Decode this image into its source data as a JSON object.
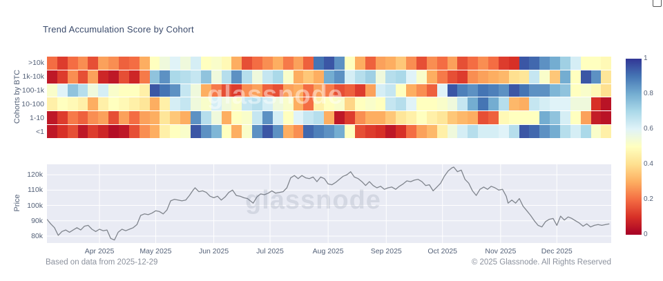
{
  "title": "Trend Accumulation Score by Cohort",
  "watermark": "glassnode",
  "footer": {
    "left": "Based on data from 2025-12-29",
    "right": "© 2025 Glassnode. All Rights Reserved"
  },
  "colors": {
    "plot_bg": "#e9ebf4",
    "grid": "#ffffff",
    "price_line": "#7f848c",
    "title_text": "#3a4a6b",
    "axis_text": "#546178",
    "footer_text": "#8b919d",
    "watermark_price": "rgba(100,110,135,0.16)",
    "watermark_heatmap": "rgba(255,255,255,0.45)"
  },
  "chart_data": [
    {
      "type": "heatmap",
      "title": "Trend Accumulation Score by Cohort",
      "ylabel": "Cohorts by BTC",
      "x_range": [
        "2025-03-04",
        "2025-12-30"
      ],
      "zmin": 0,
      "zmax": 1,
      "colorscale": "RdYlBu",
      "colorscale_stops": [
        [
          0.0,
          "#a50026"
        ],
        [
          0.1,
          "#d73027"
        ],
        [
          0.2,
          "#f46d43"
        ],
        [
          0.3,
          "#fdae61"
        ],
        [
          0.4,
          "#fee090"
        ],
        [
          0.5,
          "#ffffbf"
        ],
        [
          0.6,
          "#e0f3f8"
        ],
        [
          0.7,
          "#abd9e9"
        ],
        [
          0.8,
          "#74add1"
        ],
        [
          0.9,
          "#4575b4"
        ],
        [
          1.0,
          "#313695"
        ]
      ],
      "colorbar_ticks": [
        0,
        0.2,
        0.4,
        0.6,
        0.8,
        1
      ],
      "rows": [
        ">10k",
        "1k-10k",
        "100-1k",
        "10-100",
        "1-10",
        "<1"
      ],
      "series": [
        {
          "name": ">10k",
          "values": [
            0.2,
            0.12,
            0.2,
            0.25,
            0.15,
            0.28,
            0.25,
            0.18,
            0.2,
            0.3,
            0.5,
            0.55,
            0.6,
            0.55,
            0.62,
            0.5,
            0.52,
            0.48,
            0.3,
            0.15,
            0.2,
            0.25,
            0.3,
            0.22,
            0.28,
            0.18,
            0.9,
            0.95,
            0.85,
            0.5,
            0.3,
            0.18,
            0.28,
            0.3,
            0.35,
            0.25,
            0.15,
            0.25,
            0.2,
            0.28,
            0.15,
            0.2,
            0.25,
            0.2,
            0.12,
            0.1,
            0.95,
            0.92,
            0.85,
            0.8,
            0.72,
            0.62,
            0.5,
            0.5,
            0.48
          ]
        },
        {
          "name": "1k-10k",
          "values": [
            0.05,
            0.12,
            0.25,
            0.15,
            0.28,
            0.08,
            0.05,
            0.15,
            0.08,
            0.22,
            0.75,
            0.85,
            0.7,
            0.68,
            0.65,
            0.75,
            0.55,
            0.68,
            0.85,
            0.68,
            0.55,
            0.65,
            0.7,
            0.52,
            0.3,
            0.35,
            0.3,
            0.8,
            0.85,
            0.62,
            0.68,
            0.72,
            0.55,
            0.68,
            0.7,
            0.6,
            0.52,
            0.3,
            0.22,
            0.15,
            0.12,
            0.25,
            0.28,
            0.3,
            0.32,
            0.4,
            0.42,
            0.65,
            0.52,
            0.35,
            0.8,
            0.5,
            0.95,
            0.85,
            0.42
          ]
        },
        {
          "name": "100-1k",
          "values": [
            0.52,
            0.6,
            0.75,
            0.68,
            0.55,
            0.62,
            0.52,
            0.5,
            0.5,
            0.45,
            0.95,
            0.9,
            0.85,
            0.65,
            0.55,
            0.3,
            0.22,
            0.15,
            0.12,
            0.25,
            0.28,
            0.18,
            0.15,
            0.28,
            0.3,
            0.2,
            0.28,
            0.22,
            0.15,
            0.18,
            0.12,
            0.28,
            0.62,
            0.65,
            0.5,
            0.3,
            0.25,
            0.18,
            0.6,
            0.95,
            0.88,
            0.85,
            0.9,
            0.88,
            0.85,
            0.95,
            0.9,
            0.85,
            0.85,
            0.78,
            0.75,
            0.5,
            0.52,
            0.48,
            0.4
          ]
        },
        {
          "name": "10-100",
          "values": [
            0.45,
            0.5,
            0.48,
            0.45,
            0.3,
            0.45,
            0.5,
            0.48,
            0.45,
            0.42,
            0.3,
            0.45,
            0.62,
            0.65,
            0.55,
            0.52,
            0.62,
            0.55,
            0.52,
            0.65,
            0.68,
            0.62,
            0.55,
            0.52,
            0.3,
            0.2,
            0.45,
            0.5,
            0.52,
            0.38,
            0.5,
            0.52,
            0.5,
            0.65,
            0.68,
            0.6,
            0.5,
            0.5,
            0.52,
            0.55,
            0.65,
            0.8,
            0.9,
            0.8,
            0.68,
            0.32,
            0.3,
            0.65,
            0.62,
            0.6,
            0.6,
            0.55,
            0.55,
            0.1,
            0.04
          ]
        },
        {
          "name": "1-10",
          "values": [
            0.05,
            0.12,
            0.22,
            0.18,
            0.25,
            0.28,
            0.15,
            0.28,
            0.2,
            0.28,
            0.3,
            0.42,
            0.35,
            0.3,
            0.85,
            0.68,
            0.55,
            0.3,
            0.5,
            0.52,
            0.65,
            0.85,
            0.62,
            0.5,
            0.6,
            0.65,
            0.68,
            0.3,
            0.05,
            0.12,
            0.25,
            0.3,
            0.3,
            0.35,
            0.42,
            0.45,
            0.5,
            0.45,
            0.42,
            0.35,
            0.32,
            0.3,
            0.15,
            0.18,
            0.48,
            0.5,
            0.5,
            0.5,
            0.8,
            0.75,
            0.62,
            0.5,
            0.28,
            0.06,
            0.04
          ]
        },
        {
          "name": "<1",
          "values": [
            0.05,
            0.1,
            0.15,
            0.05,
            0.12,
            0.08,
            0.03,
            0.05,
            0.15,
            0.25,
            0.3,
            0.45,
            0.5,
            0.52,
            0.95,
            0.85,
            0.78,
            0.5,
            0.3,
            0.52,
            0.85,
            0.95,
            0.85,
            0.3,
            0.25,
            0.92,
            0.88,
            0.85,
            0.8,
            0.5,
            0.15,
            0.12,
            0.1,
            0.05,
            0.1,
            0.2,
            0.28,
            0.32,
            0.45,
            0.55,
            0.62,
            0.68,
            0.62,
            0.62,
            0.6,
            0.68,
            0.95,
            0.92,
            0.85,
            0.8,
            0.68,
            0.62,
            0.7,
            0.52,
            0.45
          ]
        }
      ]
    },
    {
      "type": "line",
      "ylabel": "Price",
      "ylim": [
        75.5,
        126.8
      ],
      "yticks": [
        {
          "value": 80,
          "label": "80k"
        },
        {
          "value": 90,
          "label": "90k"
        },
        {
          "value": 100,
          "label": "100k"
        },
        {
          "value": 110,
          "label": "110k"
        },
        {
          "value": 120,
          "label": "120k"
        }
      ],
      "xticks": [
        {
          "date": "2025-04-01",
          "label": "Apr 2025"
        },
        {
          "date": "2025-05-01",
          "label": "May 2025"
        },
        {
          "date": "2025-06-01",
          "label": "Jun 2025"
        },
        {
          "date": "2025-07-01",
          "label": "Jul 2025"
        },
        {
          "date": "2025-08-01",
          "label": "Aug 2025"
        },
        {
          "date": "2025-09-01",
          "label": "Sep 2025"
        },
        {
          "date": "2025-10-01",
          "label": "Oct 2025"
        },
        {
          "date": "2025-11-01",
          "label": "Nov 2025"
        },
        {
          "date": "2025-12-01",
          "label": "Dec 2025"
        }
      ],
      "points": [
        [
          "2025-03-04",
          91.0
        ],
        [
          "2025-03-06",
          88.0
        ],
        [
          "2025-03-08",
          85.5
        ],
        [
          "2025-03-10",
          80.5
        ],
        [
          "2025-03-12",
          83.0
        ],
        [
          "2025-03-14",
          84.0
        ],
        [
          "2025-03-16",
          82.5
        ],
        [
          "2025-03-18",
          84.0
        ],
        [
          "2025-03-20",
          85.5
        ],
        [
          "2025-03-22",
          84.0
        ],
        [
          "2025-03-24",
          86.5
        ],
        [
          "2025-03-26",
          87.0
        ],
        [
          "2025-03-28",
          84.5
        ],
        [
          "2025-03-30",
          83.0
        ],
        [
          "2025-04-01",
          84.5
        ],
        [
          "2025-04-03",
          83.5
        ],
        [
          "2025-04-05",
          84.0
        ],
        [
          "2025-04-07",
          78.5
        ],
        [
          "2025-04-09",
          77.5
        ],
        [
          "2025-04-11",
          82.5
        ],
        [
          "2025-04-13",
          84.5
        ],
        [
          "2025-04-15",
          83.5
        ],
        [
          "2025-04-17",
          84.5
        ],
        [
          "2025-04-19",
          85.5
        ],
        [
          "2025-04-21",
          87.5
        ],
        [
          "2025-04-23",
          93.5
        ],
        [
          "2025-04-25",
          94.5
        ],
        [
          "2025-04-27",
          94.0
        ],
        [
          "2025-04-29",
          95.0
        ],
        [
          "2025-05-01",
          96.5
        ],
        [
          "2025-05-03",
          96.0
        ],
        [
          "2025-05-05",
          94.5
        ],
        [
          "2025-05-07",
          97.0
        ],
        [
          "2025-05-09",
          103.0
        ],
        [
          "2025-05-11",
          104.0
        ],
        [
          "2025-05-13",
          103.5
        ],
        [
          "2025-05-15",
          103.0
        ],
        [
          "2025-05-17",
          103.5
        ],
        [
          "2025-05-19",
          106.5
        ],
        [
          "2025-05-21",
          110.0
        ],
        [
          "2025-05-22",
          111.5
        ],
        [
          "2025-05-24",
          109.0
        ],
        [
          "2025-05-26",
          109.5
        ],
        [
          "2025-05-28",
          108.5
        ],
        [
          "2025-05-30",
          106.0
        ],
        [
          "2025-06-01",
          105.0
        ],
        [
          "2025-06-03",
          106.0
        ],
        [
          "2025-06-05",
          103.5
        ],
        [
          "2025-06-07",
          105.5
        ],
        [
          "2025-06-09",
          108.5
        ],
        [
          "2025-06-11",
          110.0
        ],
        [
          "2025-06-13",
          106.5
        ],
        [
          "2025-06-15",
          106.0
        ],
        [
          "2025-06-17",
          105.0
        ],
        [
          "2025-06-19",
          104.5
        ],
        [
          "2025-06-22",
          101.5
        ],
        [
          "2025-06-24",
          105.5
        ],
        [
          "2025-06-26",
          107.5
        ],
        [
          "2025-06-28",
          107.0
        ],
        [
          "2025-06-30",
          108.0
        ],
        [
          "2025-07-02",
          109.5
        ],
        [
          "2025-07-04",
          108.0
        ],
        [
          "2025-07-06",
          108.5
        ],
        [
          "2025-07-08",
          109.0
        ],
        [
          "2025-07-10",
          111.5
        ],
        [
          "2025-07-12",
          118.0
        ],
        [
          "2025-07-14",
          119.5
        ],
        [
          "2025-07-16",
          117.5
        ],
        [
          "2025-07-18",
          119.5
        ],
        [
          "2025-07-20",
          118.0
        ],
        [
          "2025-07-22",
          117.5
        ],
        [
          "2025-07-24",
          118.5
        ],
        [
          "2025-07-26",
          115.5
        ],
        [
          "2025-07-28",
          118.5
        ],
        [
          "2025-07-30",
          117.5
        ],
        [
          "2025-08-01",
          114.0
        ],
        [
          "2025-08-03",
          113.5
        ],
        [
          "2025-08-05",
          115.0
        ],
        [
          "2025-08-07",
          117.0
        ],
        [
          "2025-08-09",
          119.0
        ],
        [
          "2025-08-11",
          120.0
        ],
        [
          "2025-08-13",
          122.0
        ],
        [
          "2025-08-15",
          118.5
        ],
        [
          "2025-08-17",
          117.5
        ],
        [
          "2025-08-19",
          115.5
        ],
        [
          "2025-08-21",
          113.0
        ],
        [
          "2025-08-23",
          115.5
        ],
        [
          "2025-08-25",
          113.0
        ],
        [
          "2025-08-27",
          111.5
        ],
        [
          "2025-08-29",
          112.5
        ],
        [
          "2025-08-31",
          110.5
        ],
        [
          "2025-09-02",
          111.5
        ],
        [
          "2025-09-04",
          112.0
        ],
        [
          "2025-09-06",
          110.5
        ],
        [
          "2025-09-08",
          112.5
        ],
        [
          "2025-09-10",
          114.0
        ],
        [
          "2025-09-12",
          116.0
        ],
        [
          "2025-09-14",
          115.5
        ],
        [
          "2025-09-16",
          116.5
        ],
        [
          "2025-09-18",
          117.0
        ],
        [
          "2025-09-20",
          115.5
        ],
        [
          "2025-09-22",
          113.0
        ],
        [
          "2025-09-24",
          113.5
        ],
        [
          "2025-09-26",
          109.5
        ],
        [
          "2025-09-28",
          112.0
        ],
        [
          "2025-09-30",
          114.5
        ],
        [
          "2025-10-02",
          119.0
        ],
        [
          "2025-10-04",
          122.5
        ],
        [
          "2025-10-06",
          124.5
        ],
        [
          "2025-10-07",
          125.0
        ],
        [
          "2025-10-09",
          122.0
        ],
        [
          "2025-10-11",
          123.0
        ],
        [
          "2025-10-13",
          117.0
        ],
        [
          "2025-10-15",
          114.5
        ],
        [
          "2025-10-17",
          109.5
        ],
        [
          "2025-10-19",
          106.5
        ],
        [
          "2025-10-21",
          110.5
        ],
        [
          "2025-10-23",
          112.0
        ],
        [
          "2025-10-25",
          110.5
        ],
        [
          "2025-10-27",
          112.5
        ],
        [
          "2025-10-29",
          111.5
        ],
        [
          "2025-10-31",
          110.0
        ],
        [
          "2025-11-02",
          110.5
        ],
        [
          "2025-11-04",
          106.0
        ],
        [
          "2025-11-05",
          101.5
        ],
        [
          "2025-11-07",
          103.5
        ],
        [
          "2025-11-09",
          101.5
        ],
        [
          "2025-11-11",
          104.5
        ],
        [
          "2025-11-13",
          99.5
        ],
        [
          "2025-11-15",
          96.5
        ],
        [
          "2025-11-17",
          93.5
        ],
        [
          "2025-11-19",
          90.0
        ],
        [
          "2025-11-21",
          87.0
        ],
        [
          "2025-11-23",
          86.0
        ],
        [
          "2025-11-25",
          89.5
        ],
        [
          "2025-11-27",
          91.0
        ],
        [
          "2025-11-29",
          91.5
        ],
        [
          "2025-12-01",
          87.0
        ],
        [
          "2025-12-03",
          93.0
        ],
        [
          "2025-12-05",
          90.5
        ],
        [
          "2025-12-07",
          92.5
        ],
        [
          "2025-12-09",
          91.5
        ],
        [
          "2025-12-11",
          90.0
        ],
        [
          "2025-12-13",
          88.5
        ],
        [
          "2025-12-15",
          86.5
        ],
        [
          "2025-12-17",
          88.0
        ],
        [
          "2025-12-19",
          86.0
        ],
        [
          "2025-12-21",
          87.0
        ],
        [
          "2025-12-23",
          87.5
        ],
        [
          "2025-12-25",
          87.0
        ],
        [
          "2025-12-27",
          87.5
        ],
        [
          "2025-12-29",
          88.0
        ]
      ]
    }
  ]
}
